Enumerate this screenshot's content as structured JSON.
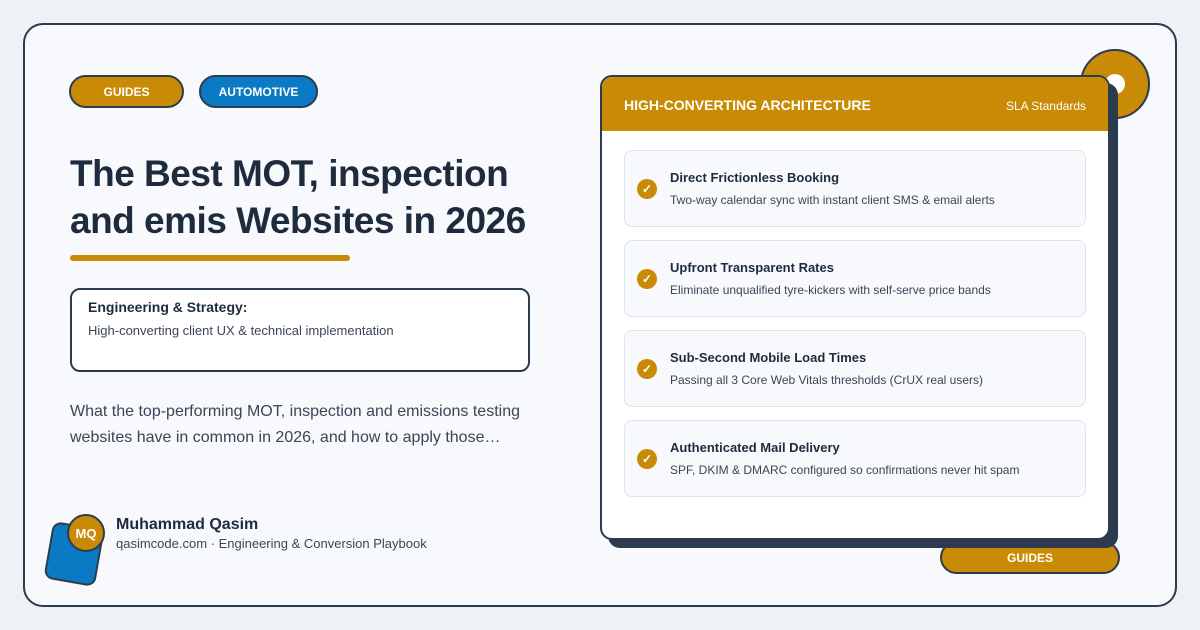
{
  "tags": [
    "GUIDES",
    "AUTOMOTIVE"
  ],
  "title": [
    "The Best MOT, inspection",
    "and emis Websites in 2026"
  ],
  "callout": {
    "heading": "Engineering & Strategy:",
    "text": "High-converting client UX & technical implementation"
  },
  "description": [
    "What the top-performing MOT, inspection and emissions testing",
    "websites have in common in 2026, and how to apply those…"
  ],
  "author": {
    "initials": "MQ",
    "name": "Muhammad Qasim",
    "byline": "qasimcode.com · Engineering & Conversion Playbook"
  },
  "panel": {
    "title": "HIGH-CONVERTING ARCHITECTURE",
    "badge": "SLA Standards",
    "items": [
      {
        "title": "Direct Frictionless Booking",
        "text": "Two-way calendar sync with instant client SMS & email alerts"
      },
      {
        "title": "Upfront Transparent Rates",
        "text": "Eliminate unqualified tyre-kickers with self-serve price bands"
      },
      {
        "title": "Sub-Second Mobile Load Times",
        "text": "Passing all 3 Core Web Vitals thresholds (CrUX real users)"
      },
      {
        "title": "Authenticated Mail Delivery",
        "text": "SPF, DKIM & DMARC configured so confirmations never hit spam"
      }
    ]
  },
  "footer_tag": "GUIDES"
}
